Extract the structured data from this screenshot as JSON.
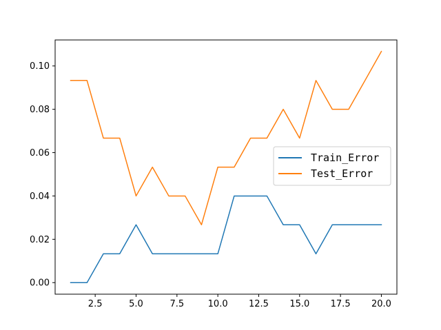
{
  "chart_data": {
    "type": "line",
    "x": [
      1,
      2,
      3,
      4,
      5,
      6,
      7,
      8,
      9,
      10,
      11,
      12,
      13,
      14,
      15,
      16,
      17,
      18,
      19,
      20
    ],
    "series": [
      {
        "name": "Train_Error",
        "color": "#1f77b4",
        "values": [
          0.0,
          0.0,
          0.0133,
          0.0133,
          0.0267,
          0.0133,
          0.0133,
          0.0133,
          0.0133,
          0.0133,
          0.04,
          0.04,
          0.04,
          0.0267,
          0.0267,
          0.0133,
          0.0267,
          0.0267,
          0.0267,
          0.0267
        ]
      },
      {
        "name": "Test_Error",
        "color": "#ff7f0e",
        "values": [
          0.0933,
          0.0933,
          0.0667,
          0.0667,
          0.04,
          0.0533,
          0.04,
          0.04,
          0.0267,
          0.0533,
          0.0533,
          0.0667,
          0.0667,
          0.08,
          0.0667,
          0.0933,
          0.08,
          0.08,
          0.0933,
          0.1067
        ]
      }
    ],
    "xlim": [
      0.05,
      20.95
    ],
    "ylim": [
      -0.00533,
      0.112
    ],
    "xticks": [
      2.5,
      5.0,
      7.5,
      10.0,
      12.5,
      15.0,
      17.5,
      20.0
    ],
    "xtick_labels": [
      "2.5",
      "5.0",
      "7.5",
      "10.0",
      "12.5",
      "15.0",
      "17.5",
      "20.0"
    ],
    "yticks": [
      0.0,
      0.02,
      0.04,
      0.06,
      0.08,
      0.1
    ],
    "ytick_labels": [
      "0.00",
      "0.02",
      "0.04",
      "0.06",
      "0.08",
      "0.10"
    ],
    "grid": false,
    "legend_position": "center-right"
  }
}
